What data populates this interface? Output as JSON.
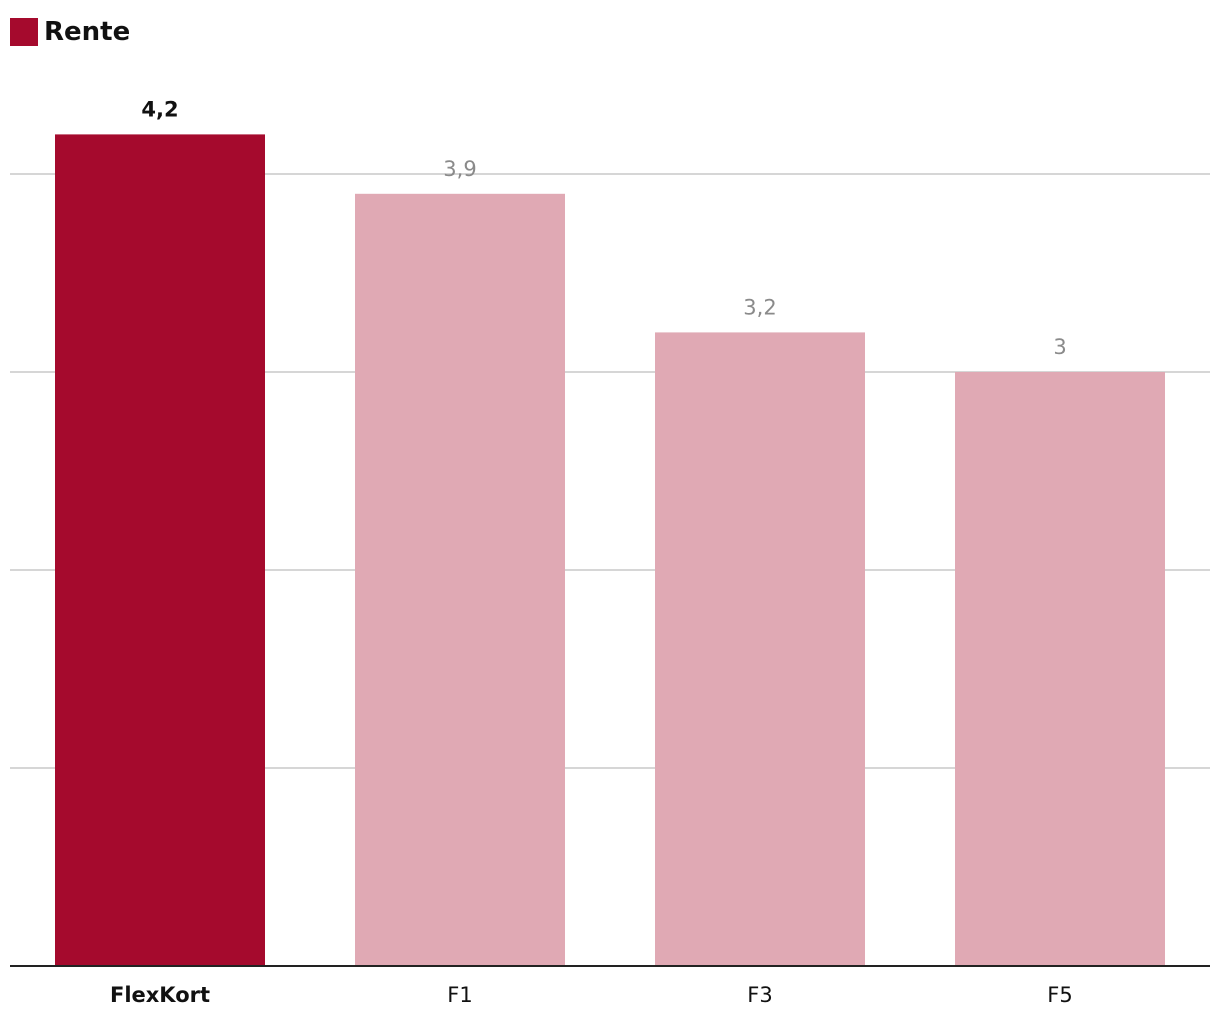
{
  "legend": {
    "label": "Rente",
    "color": "#a50a2d"
  },
  "colors": {
    "highlight": "#a50a2d",
    "default": "#e0a9b4",
    "grid": "#c8c8c8",
    "baseline": "#222222",
    "highlight_label": "#111111",
    "default_label": "#8a8a8a"
  },
  "chart_data": {
    "type": "bar",
    "categories": [
      "FlexKort",
      "F1",
      "F3",
      "F5"
    ],
    "series": [
      {
        "name": "Rente",
        "values": [
          4.2,
          3.9,
          3.2,
          3.0
        ]
      }
    ],
    "value_labels": [
      "4,2",
      "3,9",
      "3,2",
      "3"
    ],
    "highlight_index": 0,
    "ylim": [
      0,
      4
    ],
    "gridlines": [
      1,
      2,
      3,
      4
    ],
    "y_tick_labels_shown": false,
    "grid": true,
    "legend_position": "top-left",
    "title": "",
    "xlabel": "",
    "ylabel": ""
  }
}
